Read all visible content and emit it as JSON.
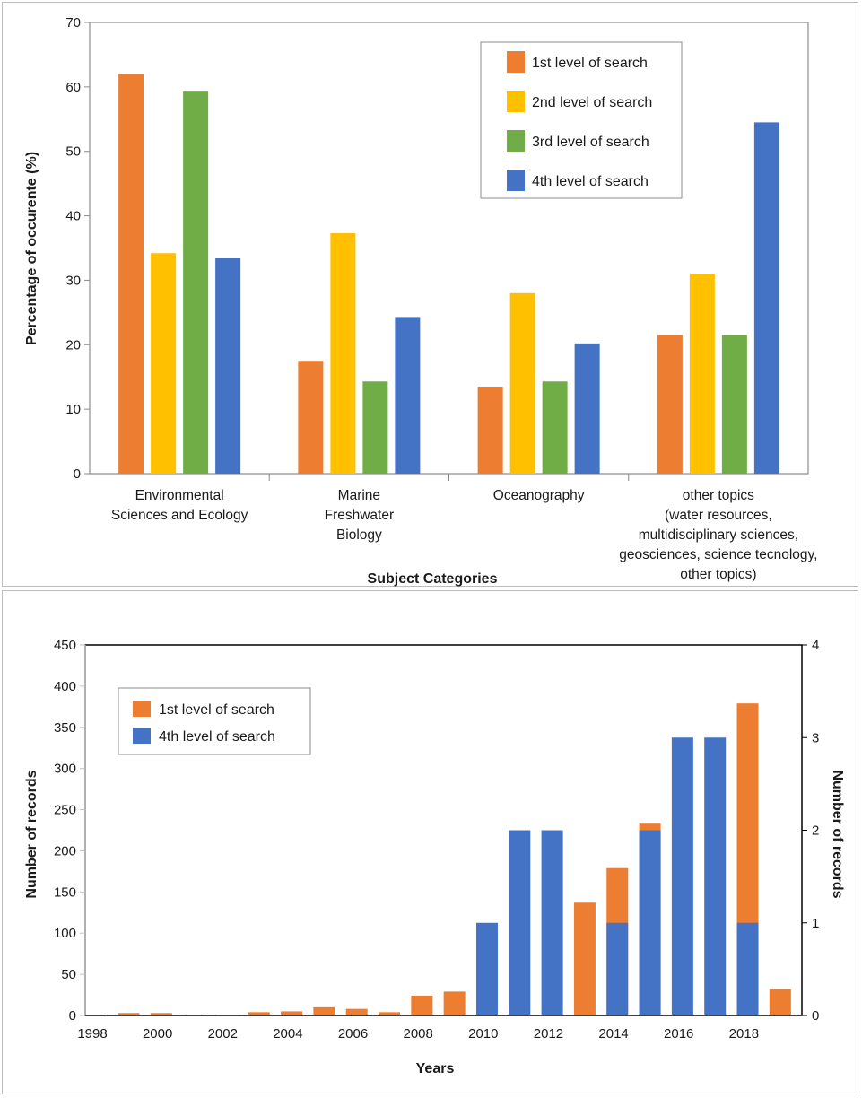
{
  "chart_data": [
    {
      "type": "bar",
      "title": "",
      "xlabel": "Subject Categories",
      "ylabel": "Percentage of occurente (%)",
      "ylim": [
        0,
        70
      ],
      "yticks": [
        "0",
        "10",
        "20",
        "30",
        "40",
        "50",
        "60",
        "70"
      ],
      "categories": [
        [
          "Environmental",
          "Sciences and Ecology"
        ],
        [
          "Marine",
          "Freshwater",
          "Biology"
        ],
        [
          "Oceanography"
        ],
        [
          "other topics",
          "(water resources,",
          "multidisciplinary sciences,",
          "geosciences, science tecnology,",
          "other topics)"
        ]
      ],
      "series": [
        {
          "name": "1st level of search",
          "color": "#ED7D31",
          "values": [
            62,
            17.5,
            13.5,
            21.5
          ]
        },
        {
          "name": "2nd level of search",
          "color": "#FFC000",
          "values": [
            34.2,
            37.3,
            28,
            31
          ]
        },
        {
          "name": "3rd level of search",
          "color": "#70AD47",
          "values": [
            59.4,
            14.3,
            14.3,
            21.5
          ]
        },
        {
          "name": "4th level of search",
          "color": "#4472C4",
          "values": [
            33.4,
            24.3,
            20.2,
            54.5
          ]
        }
      ],
      "legend": "top-right"
    },
    {
      "type": "bar",
      "title": "",
      "xlabel": "Years",
      "ylabel": "Number of records",
      "ylabel_right": "Number of records",
      "ylim": [
        0,
        450
      ],
      "ylim_right": [
        0,
        4
      ],
      "yticks": [
        "0",
        "50",
        "100",
        "150",
        "200",
        "250",
        "300",
        "350",
        "400",
        "450"
      ],
      "yticks_right": [
        "0",
        "1",
        "2",
        "3",
        "4"
      ],
      "categories": [
        1998,
        1999,
        2000,
        2001,
        2002,
        2003,
        2004,
        2005,
        2006,
        2007,
        2008,
        2009,
        2010,
        2011,
        2012,
        2013,
        2014,
        2015,
        2016,
        2017,
        2018,
        2019
      ],
      "xtick_labels": [
        "1998",
        "2000",
        "2002",
        "2004",
        "2006",
        "2008",
        "2010",
        "2012",
        "2014",
        "2016",
        "2018"
      ],
      "series": [
        {
          "name": "1st level of search",
          "color": "#ED7D31",
          "axis": "left",
          "values": [
            1,
            3,
            3,
            1,
            1,
            4,
            5,
            10,
            8,
            4,
            24,
            29,
            0,
            0,
            0,
            137,
            179,
            233,
            0,
            0,
            379,
            32
          ]
        },
        {
          "name": "4th level of search",
          "color": "#4472C4",
          "axis": "right",
          "values": [
            0,
            0,
            0,
            0,
            0,
            0,
            0,
            0,
            0,
            0,
            0,
            0,
            1,
            2,
            2,
            0,
            1,
            2,
            3,
            3,
            1,
            0
          ]
        }
      ],
      "legend": "top-left"
    }
  ]
}
